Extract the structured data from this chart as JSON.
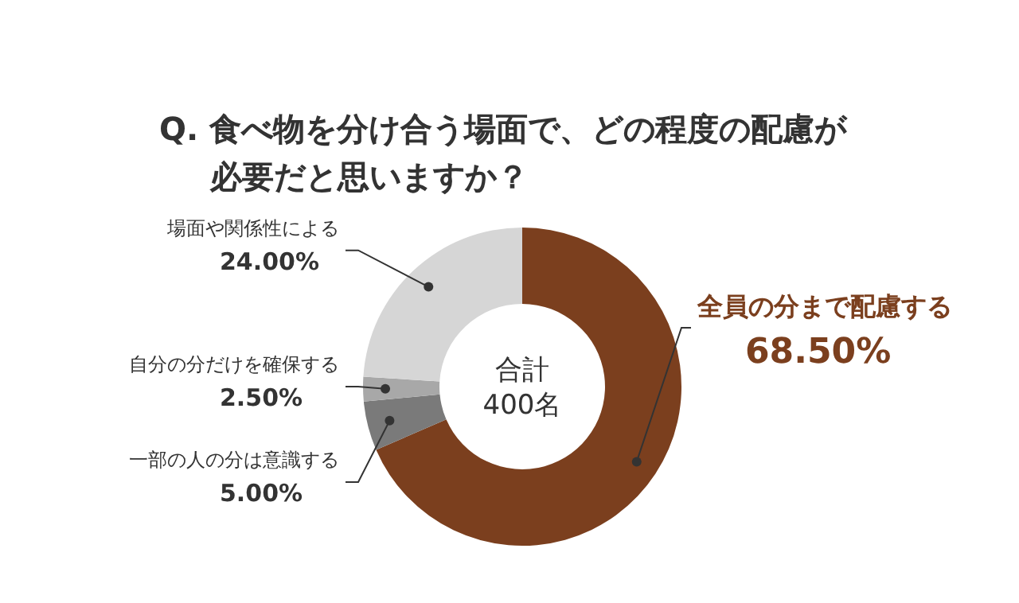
{
  "chart_data": {
    "type": "donut",
    "title": "Q. 食べ物を分け合う場面で、どの程度の配慮が必要だと思いますか？",
    "categories": [
      "全員の分まで配慮する",
      "一部の人の分は意識する",
      "自分の分だけを確保する",
      "場面や関係性による"
    ],
    "values": [
      68.5,
      5,
      2.5,
      24
    ],
    "colors": [
      "#7b3f1e",
      "#7a7a7a",
      "#a8a8a8",
      "#d6d6d6"
    ],
    "value_labels": [
      "68.50%",
      "5.00%",
      "2.50%",
      "24.00%"
    ],
    "annotations": [
      "合計\n400名"
    ]
  }
}
